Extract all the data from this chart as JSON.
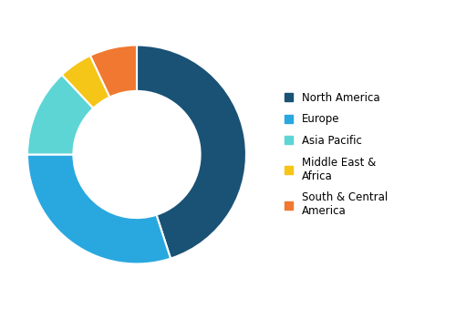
{
  "labels": [
    "North America",
    "Europe",
    "Asia Pacific",
    "Middle East & Africa",
    "South & Central America"
  ],
  "values": [
    45,
    30,
    13,
    5,
    7
  ],
  "colors": [
    "#1a5276",
    "#29a8e0",
    "#5dd5d5",
    "#f5c518",
    "#f07830"
  ],
  "legend_labels": [
    "North America",
    "Europe",
    "Asia Pacific",
    "Middle East &\nAfrica",
    "South & Central\nAmerica"
  ],
  "background_color": "#ffffff",
  "wedge_edge_color": "#ffffff",
  "donut_width": 0.42
}
